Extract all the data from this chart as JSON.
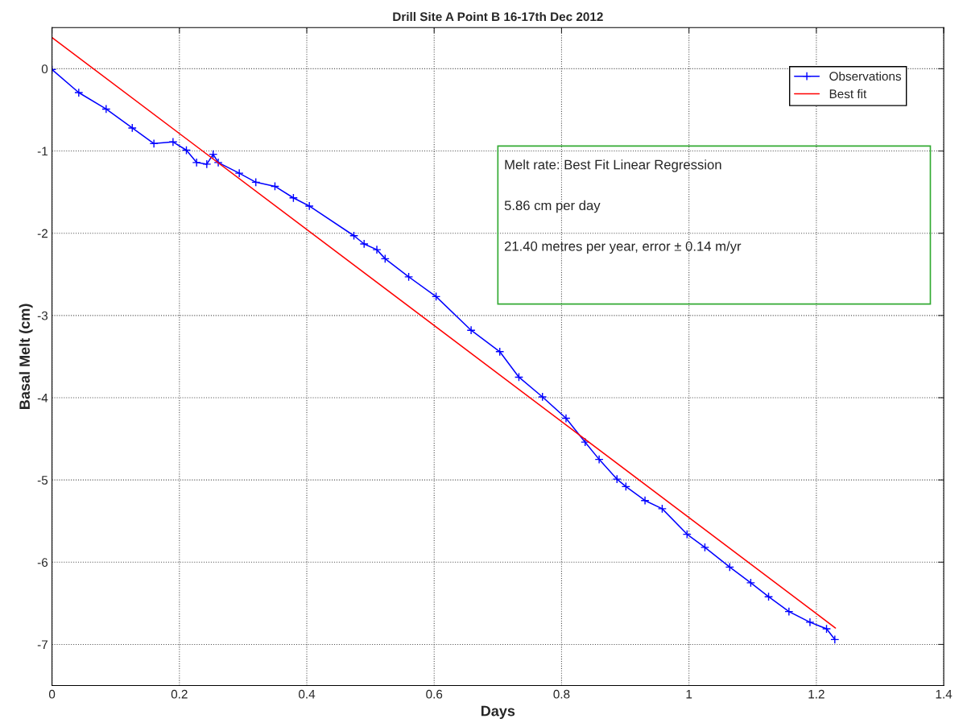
{
  "chart_data": {
    "type": "line",
    "title": "Drill Site A Point B 16-17th Dec 2012",
    "xlabel": "Days",
    "ylabel": "Basal Melt (cm)",
    "xlim": [
      0,
      1.4
    ],
    "ylim": [
      -7.5,
      0.5
    ],
    "xticks": [
      0,
      0.2,
      0.4,
      0.6,
      0.8,
      1,
      1.2,
      1.4
    ],
    "yticks": [
      -7,
      -6,
      -5,
      -4,
      -3,
      -2,
      -1,
      0
    ],
    "grid": true,
    "legend": "top right",
    "annotations": [
      "Melt rate: Best Fit Linear Regression",
      "5.86 cm per day",
      "21.40 metres per year, error ± 0.14 m/yr"
    ],
    "series": [
      {
        "name": "Observations",
        "color": "#0000ff",
        "marker": "cross",
        "x": [
          0,
          0.042,
          0.085,
          0.126,
          0.16,
          0.19,
          0.211,
          0.227,
          0.243,
          0.253,
          0.261,
          0.294,
          0.32,
          0.35,
          0.379,
          0.404,
          0.474,
          0.49,
          0.51,
          0.523,
          0.56,
          0.603,
          0.658,
          0.703,
          0.733,
          0.77,
          0.807,
          0.837,
          0.859,
          0.887,
          0.901,
          0.931,
          0.958,
          0.997,
          1.025,
          1.064,
          1.097,
          1.125,
          1.157,
          1.19,
          1.216,
          1.229
        ],
        "values": [
          -0.01,
          -0.29,
          -0.49,
          -0.72,
          -0.91,
          -0.89,
          -0.99,
          -1.14,
          -1.16,
          -1.04,
          -1.14,
          -1.27,
          -1.38,
          -1.43,
          -1.57,
          -1.67,
          -2.03,
          -2.13,
          -2.2,
          -2.31,
          -2.53,
          -2.77,
          -3.18,
          -3.44,
          -3.75,
          -3.99,
          -4.25,
          -4.54,
          -4.75,
          -4.99,
          -5.08,
          -5.25,
          -5.35,
          -5.66,
          -5.82,
          -6.06,
          -6.25,
          -6.42,
          -6.6,
          -6.73,
          -6.81,
          -6.94
        ]
      },
      {
        "name": "Best fit",
        "color": "#ff0000",
        "marker": "none",
        "x": [
          0,
          1.23
        ],
        "values": [
          0.38,
          -6.8
        ]
      }
    ]
  }
}
